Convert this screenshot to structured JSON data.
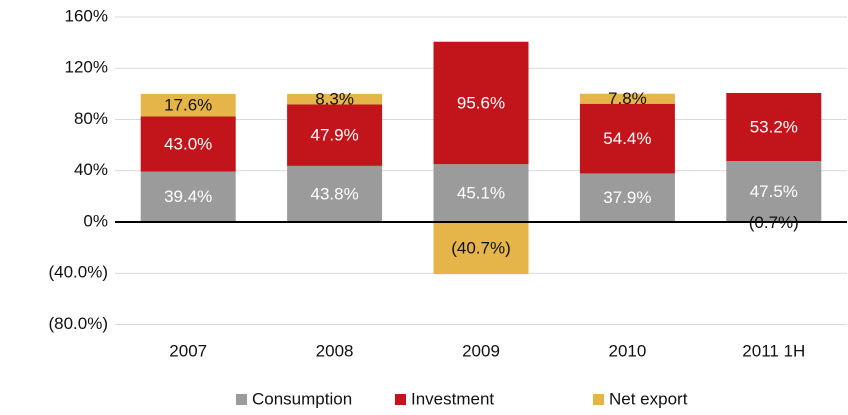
{
  "chart_data": {
    "type": "stacked_bar",
    "categories": [
      "2007",
      "2008",
      "2009",
      "2010",
      "2011 1H"
    ],
    "series": [
      {
        "name": "Consumption",
        "color": "#9b9b9b",
        "values": [
          39.4,
          43.8,
          45.1,
          37.9,
          47.5
        ],
        "value_labels": [
          "39.4%",
          "43.8%",
          "45.1%",
          "37.9%",
          "47.5%"
        ],
        "label_color": "#ffffff"
      },
      {
        "name": "Investment",
        "color": "#c1151b",
        "values": [
          43.0,
          47.9,
          95.6,
          54.4,
          53.2
        ],
        "value_labels": [
          "43.0%",
          "47.9%",
          "95.6%",
          "54.4%",
          "53.2%"
        ],
        "label_color": "#ffffff"
      },
      {
        "name": "Net export",
        "color": "#e6b54a",
        "values": [
          17.6,
          8.3,
          -40.7,
          7.8,
          -0.7
        ],
        "value_labels": [
          "17.6%",
          "8.3%",
          "(40.7%)",
          "7.8%",
          "(0.7%)"
        ],
        "label_color": "#111111"
      }
    ],
    "ylim": [
      -80,
      160
    ],
    "yticks": [
      {
        "value": -80,
        "label": "(80.0%)"
      },
      {
        "value": -40,
        "label": "(40.0%)"
      },
      {
        "value": 0,
        "label": "0%"
      },
      {
        "value": 40,
        "label": "40%"
      },
      {
        "value": 80,
        "label": "80%"
      },
      {
        "value": 120,
        "label": "120%"
      },
      {
        "value": 160,
        "label": "160%"
      }
    ],
    "grid": true,
    "legend": "bottom"
  }
}
